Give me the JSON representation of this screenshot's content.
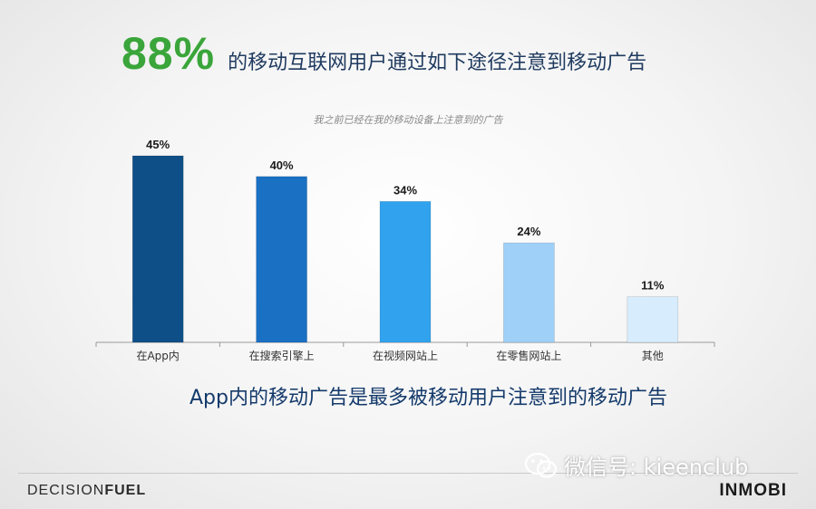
{
  "headline": {
    "big_percent": "88%",
    "text": "的移动互联网用户通过如下途径注意到移动广告"
  },
  "tagline": "App内的移动广告是最多被移动用户注意到的移动广告",
  "footer": {
    "logo_left_a": "DECISION",
    "logo_left_b": "FUEL",
    "logo_right": "INMOBI"
  },
  "watermark": {
    "text": "微信号: kieenclub",
    "icon": "wechat-icon"
  },
  "chart_data": {
    "type": "bar",
    "title": "我之前已经在我的移动设备上注意到的广告",
    "categories": [
      "在App内",
      "在搜索引擎上",
      "在视频网站上",
      "在零售网站上",
      "其他"
    ],
    "values": [
      45,
      40,
      34,
      24,
      11
    ],
    "value_labels": [
      "45%",
      "40%",
      "34%",
      "24%",
      "11%"
    ],
    "colors": [
      "#0f4f87",
      "#1a70c2",
      "#31a3ee",
      "#9fd0f8",
      "#d7ecfc"
    ],
    "xlabel": "",
    "ylabel": "",
    "ylim": [
      0,
      50
    ],
    "grid": false,
    "legend": "none"
  }
}
